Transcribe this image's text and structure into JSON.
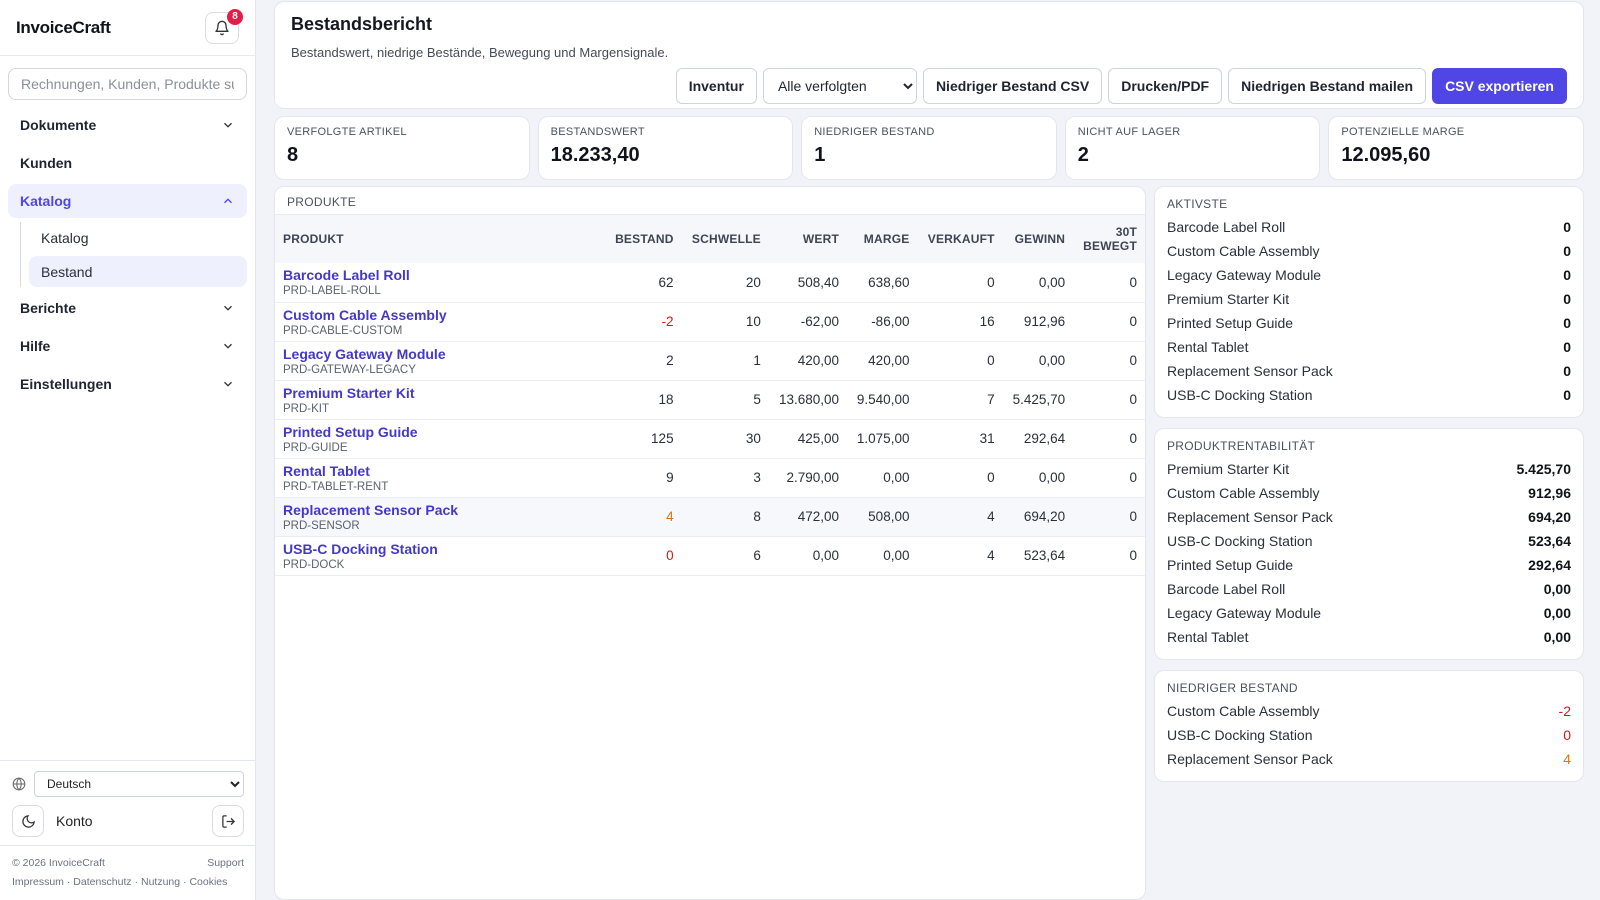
{
  "app": {
    "name": "InvoiceCraft",
    "notification_count": "8"
  },
  "search": {
    "placeholder": "Rechnungen, Kunden, Produkte su"
  },
  "nav": {
    "dokumente": "Dokumente",
    "kunden": "Kunden",
    "katalog": "Katalog",
    "katalog_sub": [
      "Katalog",
      "Bestand"
    ],
    "berichte": "Berichte",
    "hilfe": "Hilfe",
    "einstellungen": "Einstellungen"
  },
  "footer": {
    "language": "Deutsch",
    "account": "Konto",
    "copyright": "© 2026 InvoiceCraft",
    "support": "Support",
    "links": [
      "Impressum",
      "Datenschutz",
      "Nutzung",
      "Cookies"
    ]
  },
  "header": {
    "title": "Bestandsbericht",
    "subtitle": "Bestandswert, niedrige Bestände, Bewegung und Margensignale.",
    "btn_inventur": "Inventur",
    "filter_value": "Alle verfolgten",
    "btn_low_csv": "Niedriger Bestand CSV",
    "btn_print": "Drucken/PDF",
    "btn_mail": "Niedrigen Bestand mailen",
    "btn_export": "CSV exportieren"
  },
  "kpis": [
    {
      "label": "Verfolgte Artikel",
      "value": "8"
    },
    {
      "label": "Bestandswert",
      "value": "18.233,40"
    },
    {
      "label": "Niedriger Bestand",
      "value": "1"
    },
    {
      "label": "Nicht auf Lager",
      "value": "2"
    },
    {
      "label": "Potenzielle Marge",
      "value": "12.095,60"
    }
  ],
  "products": {
    "title": "Produkte",
    "columns": [
      "Produkt",
      "Bestand",
      "Schwelle",
      "Wert",
      "Marge",
      "Verkauft",
      "Gewinn",
      "30T",
      "Bewegt"
    ],
    "rows": [
      {
        "name": "Barcode Label Roll",
        "sku": "PRD-LABEL-ROLL",
        "stock": "62",
        "threshold": "20",
        "value": "508,40",
        "margin": "638,60",
        "sold": "0",
        "profit": "0,00",
        "moved": "0"
      },
      {
        "name": "Custom Cable Assembly",
        "sku": "PRD-CABLE-CUSTOM",
        "stock": "-2",
        "threshold": "10",
        "value": "-62,00",
        "margin": "-86,00",
        "sold": "16",
        "profit": "912,96",
        "moved": "0"
      },
      {
        "name": "Legacy Gateway Module",
        "sku": "PRD-GATEWAY-LEGACY",
        "stock": "2",
        "threshold": "1",
        "value": "420,00",
        "margin": "420,00",
        "sold": "0",
        "profit": "0,00",
        "moved": "0"
      },
      {
        "name": "Premium Starter Kit",
        "sku": "PRD-KIT",
        "stock": "18",
        "threshold": "5",
        "value": "13.680,00",
        "margin": "9.540,00",
        "sold": "7",
        "profit": "5.425,70",
        "moved": "0"
      },
      {
        "name": "Printed Setup Guide",
        "sku": "PRD-GUIDE",
        "stock": "125",
        "threshold": "30",
        "value": "425,00",
        "margin": "1.075,00",
        "sold": "31",
        "profit": "292,64",
        "moved": "0"
      },
      {
        "name": "Rental Tablet",
        "sku": "PRD-TABLET-RENT",
        "stock": "9",
        "threshold": "3",
        "value": "2.790,00",
        "margin": "0,00",
        "sold": "0",
        "profit": "0,00",
        "moved": "0"
      },
      {
        "name": "Replacement Sensor Pack",
        "sku": "PRD-SENSOR",
        "stock": "4",
        "threshold": "8",
        "value": "472,00",
        "margin": "508,00",
        "sold": "4",
        "profit": "694,20",
        "moved": "0"
      },
      {
        "name": "USB-C Docking Station",
        "sku": "PRD-DOCK",
        "stock": "0",
        "threshold": "6",
        "value": "0,00",
        "margin": "0,00",
        "sold": "4",
        "profit": "523,64",
        "moved": "0"
      }
    ]
  },
  "active": {
    "title": "Aktivste",
    "rows": [
      {
        "name": "Barcode Label Roll",
        "value": "0"
      },
      {
        "name": "Custom Cable Assembly",
        "value": "0"
      },
      {
        "name": "Legacy Gateway Module",
        "value": "0"
      },
      {
        "name": "Premium Starter Kit",
        "value": "0"
      },
      {
        "name": "Printed Setup Guide",
        "value": "0"
      },
      {
        "name": "Rental Tablet",
        "value": "0"
      },
      {
        "name": "Replacement Sensor Pack",
        "value": "0"
      },
      {
        "name": "USB-C Docking Station",
        "value": "0"
      }
    ]
  },
  "profitability": {
    "title": "Produktrentabilität",
    "rows": [
      {
        "name": "Premium Starter Kit",
        "value": "5.425,70"
      },
      {
        "name": "Custom Cable Assembly",
        "value": "912,96"
      },
      {
        "name": "Replacement Sensor Pack",
        "value": "694,20"
      },
      {
        "name": "USB-C Docking Station",
        "value": "523,64"
      },
      {
        "name": "Printed Setup Guide",
        "value": "292,64"
      },
      {
        "name": "Barcode Label Roll",
        "value": "0,00"
      },
      {
        "name": "Legacy Gateway Module",
        "value": "0,00"
      },
      {
        "name": "Rental Tablet",
        "value": "0,00"
      }
    ]
  },
  "low_stock": {
    "title": "Niedriger Bestand",
    "rows": [
      {
        "name": "Custom Cable Assembly",
        "value": "-2"
      },
      {
        "name": "USB-C Docking Station",
        "value": "0"
      },
      {
        "name": "Replacement Sensor Pack",
        "value": "4"
      }
    ]
  },
  "colors": {
    "accent": "#4f46e5",
    "danger": "#c81e1e",
    "warning": "#d97706",
    "badge": "#e11d48"
  }
}
